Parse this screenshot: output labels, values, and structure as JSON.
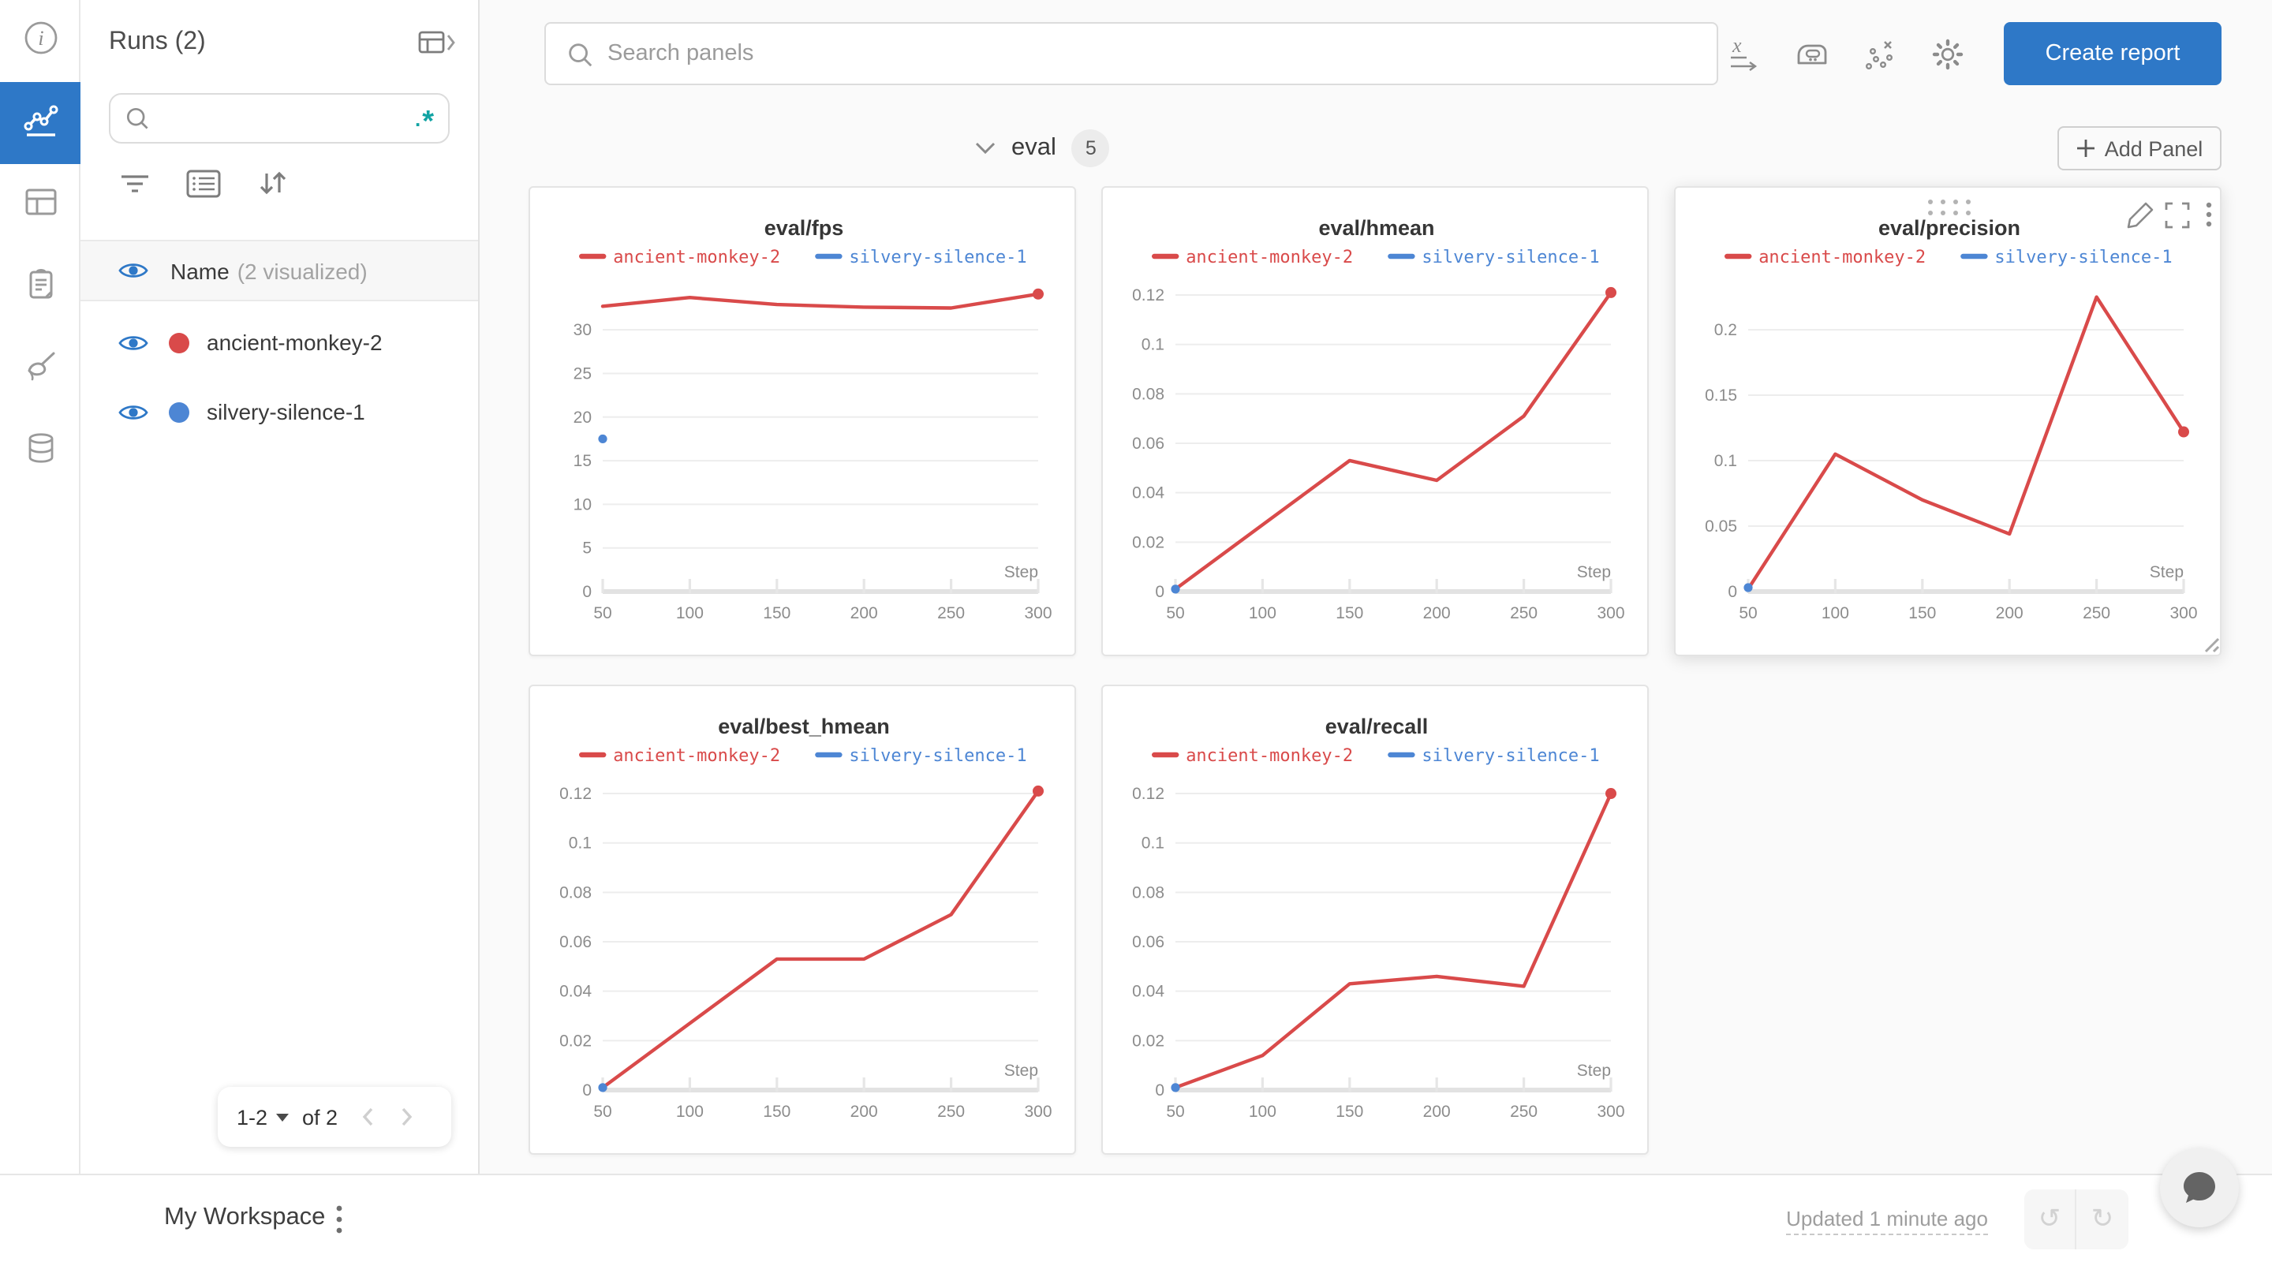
{
  "colors": {
    "accent_blue": "#2e78c7",
    "series_red": "#d94a4a",
    "series_blue": "#4d86d4",
    "regex_teal": "#12a4a4"
  },
  "runs_panel": {
    "title": "Runs (2)",
    "search_placeholder": "",
    "regex_label": ".*",
    "header": {
      "label": "Name",
      "sublabel": "(2 visualized)"
    },
    "runs": [
      {
        "name": "ancient-monkey-2",
        "color": "#d94a4a"
      },
      {
        "name": "silvery-silence-1",
        "color": "#4d86d4"
      }
    ],
    "pagination": {
      "range": "1-2",
      "of": "of 2"
    }
  },
  "topbar": {
    "search_placeholder": "Search panels",
    "create_report_label": "Create report"
  },
  "section": {
    "name": "eval",
    "count": "5",
    "add_panel_label": "Add Panel"
  },
  "footer": {
    "workspace_title": "My Workspace",
    "updated_text": "Updated 1 minute ago"
  },
  "chart_data": [
    {
      "type": "line",
      "title": "eval/fps",
      "x_label": "Step",
      "legend_position": "top",
      "x_ticks": [
        "50",
        "100",
        "150",
        "200",
        "250",
        "300"
      ],
      "x_values": [
        50,
        100,
        150,
        200,
        250,
        300
      ],
      "y_ticks": [
        {
          "v": 0,
          "label": "0"
        },
        {
          "v": 5,
          "label": "5"
        },
        {
          "v": 10,
          "label": "10"
        },
        {
          "v": 15,
          "label": "15"
        },
        {
          "v": 20,
          "label": "20"
        },
        {
          "v": 25,
          "label": "25"
        },
        {
          "v": 30,
          "label": "30"
        }
      ],
      "y_top": 35.8,
      "hovered": false,
      "series": [
        {
          "name": "ancient-monkey-2",
          "color": "#d94a4a",
          "x": [
            50,
            100,
            150,
            200,
            250,
            300
          ],
          "values": [
            32.7,
            33.7,
            32.9,
            32.6,
            32.5,
            34.1
          ],
          "marker": "end"
        },
        {
          "name": "silvery-silence-1",
          "color": "#4d86d4",
          "x": [
            50
          ],
          "values": [
            17.5
          ],
          "marker": "all"
        }
      ]
    },
    {
      "type": "line",
      "title": "eval/hmean",
      "x_label": "Step",
      "legend_position": "top",
      "x_ticks": [
        "50",
        "100",
        "150",
        "200",
        "250",
        "300"
      ],
      "x_values": [
        50,
        100,
        150,
        200,
        250,
        300
      ],
      "y_ticks": [
        {
          "v": 0,
          "label": "0"
        },
        {
          "v": 0.02,
          "label": "0.02"
        },
        {
          "v": 0.04,
          "label": "0.04"
        },
        {
          "v": 0.06,
          "label": "0.06"
        },
        {
          "v": 0.08,
          "label": "0.08"
        },
        {
          "v": 0.1,
          "label": "0.1"
        },
        {
          "v": 0.12,
          "label": "0.12"
        }
      ],
      "y_top": 0.1264,
      "hovered": false,
      "series": [
        {
          "name": "ancient-monkey-2",
          "color": "#d94a4a",
          "x": [
            50,
            100,
            150,
            200,
            250,
            300
          ],
          "values": [
            0.001,
            0.027,
            0.053,
            0.045,
            0.071,
            0.121
          ],
          "marker": "end"
        },
        {
          "name": "silvery-silence-1",
          "color": "#4d86d4",
          "x": [
            50
          ],
          "values": [
            0.001
          ],
          "marker": "all"
        }
      ]
    },
    {
      "type": "line",
      "title": "eval/precision",
      "x_label": "Step",
      "legend_position": "top",
      "x_ticks": [
        "50",
        "100",
        "150",
        "200",
        "250",
        "300"
      ],
      "x_values": [
        50,
        100,
        150,
        200,
        250,
        300
      ],
      "y_ticks": [
        {
          "v": 0,
          "label": "0"
        },
        {
          "v": 0.05,
          "label": "0.05"
        },
        {
          "v": 0.1,
          "label": "0.1"
        },
        {
          "v": 0.15,
          "label": "0.15"
        },
        {
          "v": 0.2,
          "label": "0.2"
        }
      ],
      "y_top": 0.2386,
      "hovered": true,
      "series": [
        {
          "name": "ancient-monkey-2",
          "color": "#d94a4a",
          "x": [
            50,
            100,
            150,
            200,
            250,
            300
          ],
          "values": [
            0.002,
            0.105,
            0.07,
            0.044,
            0.225,
            0.122
          ],
          "marker": "end"
        },
        {
          "name": "silvery-silence-1",
          "color": "#4d86d4",
          "x": [
            50
          ],
          "values": [
            0.003
          ],
          "marker": "all"
        }
      ]
    },
    {
      "type": "line",
      "title": "eval/best_hmean",
      "x_label": "Step",
      "legend_position": "top",
      "x_ticks": [
        "50",
        "100",
        "150",
        "200",
        "250",
        "300"
      ],
      "x_values": [
        50,
        100,
        150,
        200,
        250,
        300
      ],
      "y_ticks": [
        {
          "v": 0,
          "label": "0"
        },
        {
          "v": 0.02,
          "label": "0.02"
        },
        {
          "v": 0.04,
          "label": "0.04"
        },
        {
          "v": 0.06,
          "label": "0.06"
        },
        {
          "v": 0.08,
          "label": "0.08"
        },
        {
          "v": 0.1,
          "label": "0.1"
        },
        {
          "v": 0.12,
          "label": "0.12"
        }
      ],
      "y_top": 0.1264,
      "hovered": false,
      "series": [
        {
          "name": "ancient-monkey-2",
          "color": "#d94a4a",
          "x": [
            50,
            100,
            150,
            200,
            250,
            300
          ],
          "values": [
            0.001,
            0.027,
            0.053,
            0.053,
            0.071,
            0.121
          ],
          "marker": "end"
        },
        {
          "name": "silvery-silence-1",
          "color": "#4d86d4",
          "x": [
            50
          ],
          "values": [
            0.001
          ],
          "marker": "all"
        }
      ]
    },
    {
      "type": "line",
      "title": "eval/recall",
      "x_label": "Step",
      "legend_position": "top",
      "x_ticks": [
        "50",
        "100",
        "150",
        "200",
        "250",
        "300"
      ],
      "x_values": [
        50,
        100,
        150,
        200,
        250,
        300
      ],
      "y_ticks": [
        {
          "v": 0,
          "label": "0"
        },
        {
          "v": 0.02,
          "label": "0.02"
        },
        {
          "v": 0.04,
          "label": "0.04"
        },
        {
          "v": 0.06,
          "label": "0.06"
        },
        {
          "v": 0.08,
          "label": "0.08"
        },
        {
          "v": 0.1,
          "label": "0.1"
        },
        {
          "v": 0.12,
          "label": "0.12"
        }
      ],
      "y_top": 0.1264,
      "hovered": false,
      "series": [
        {
          "name": "ancient-monkey-2",
          "color": "#d94a4a",
          "x": [
            50,
            100,
            150,
            200,
            250,
            300
          ],
          "values": [
            0.001,
            0.014,
            0.043,
            0.046,
            0.042,
            0.12
          ],
          "marker": "end"
        },
        {
          "name": "silvery-silence-1",
          "color": "#4d86d4",
          "x": [
            50
          ],
          "values": [
            0.001
          ],
          "marker": "all"
        }
      ]
    }
  ]
}
